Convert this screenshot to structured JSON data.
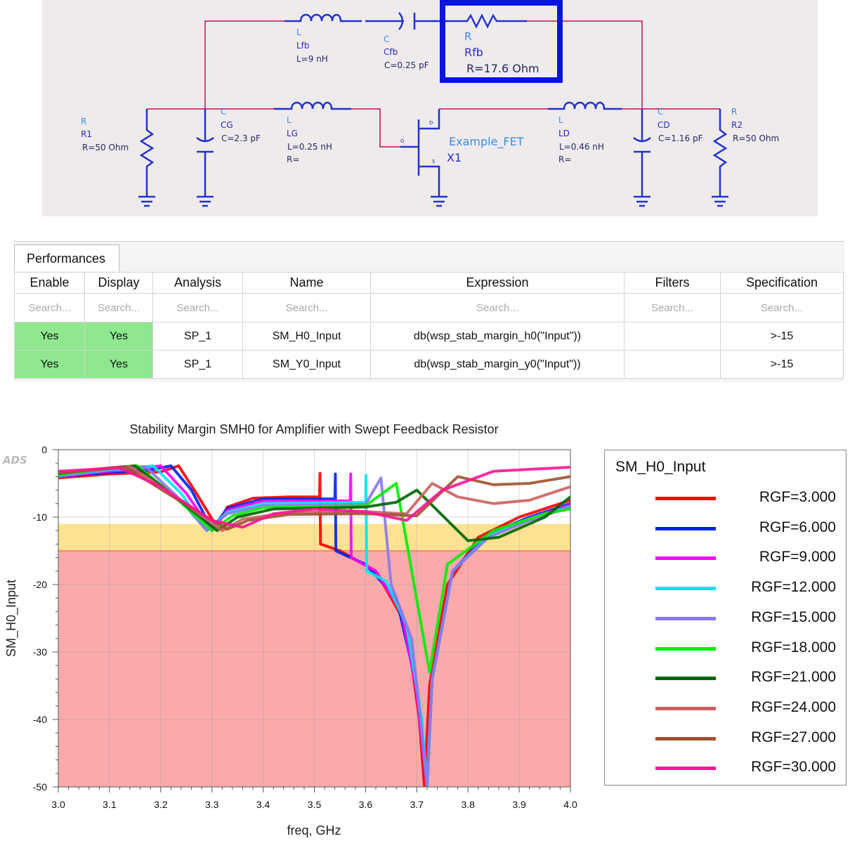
{
  "schematic": {
    "components": {
      "R1": {
        "type": "R",
        "name": "R1",
        "value": "R=50 Ohm"
      },
      "CG": {
        "type": "C",
        "name": "CG",
        "value": "C=2.3 pF"
      },
      "Lfb": {
        "type": "L",
        "name": "Lfb",
        "value": "L=9 nH"
      },
      "Cfb": {
        "type": "C",
        "name": "Cfb",
        "value": "C=0.25 pF"
      },
      "Rfb": {
        "type": "R",
        "name": "Rfb",
        "value": "R=17.6 Ohm"
      },
      "LG": {
        "type": "L",
        "name": "LG",
        "value": "L=0.25 nH",
        "extra": "R="
      },
      "X1": {
        "type": "Example_FET",
        "name": "X1",
        "pins": [
          "G",
          "D",
          "S"
        ]
      },
      "LD": {
        "type": "L",
        "name": "LD",
        "value": "L=0.46 nH",
        "extra": "R="
      },
      "CD": {
        "type": "C",
        "name": "CD",
        "value": "C=1.16 pF"
      },
      "R2": {
        "type": "R",
        "name": "R2",
        "value": "R=50 Ohm"
      }
    },
    "colors": {
      "wire": "#d6417f",
      "component": "#2233cc",
      "highlight": "#0a14e0",
      "background": "#efebec"
    }
  },
  "performances": {
    "tab": "Performances",
    "columns": [
      "Enable",
      "Display",
      "Analysis",
      "Name",
      "Expression",
      "Filters",
      "Specification"
    ],
    "search_placeholder": "Search...",
    "rows": [
      {
        "enable": "Yes",
        "display": "Yes",
        "analysis": "SP_1",
        "name": "SM_H0_Input",
        "expression": "db(wsp_stab_margin_h0(\"Input\"))",
        "filters": "",
        "spec": ">-15"
      },
      {
        "enable": "Yes",
        "display": "Yes",
        "analysis": "SP_1",
        "name": "SM_Y0_Input",
        "expression": "db(wsp_stab_margin_y0(\"Input\"))",
        "filters": "",
        "spec": ">-15"
      }
    ]
  },
  "chart_data": {
    "type": "line",
    "title": "Stability Margin SMH0 for Amplifier with Swept Feedback Resistor",
    "xlabel": "freq, GHz",
    "ylabel": "SM_H0_Input",
    "logo": "ADS",
    "xlim": [
      3.0,
      4.0
    ],
    "ylim": [
      -50,
      0
    ],
    "xticks": [
      "3.0",
      "3.1",
      "3.2",
      "3.3",
      "3.4",
      "3.5",
      "3.6",
      "3.7",
      "3.8",
      "3.9",
      "4.0"
    ],
    "yticks": [
      "0",
      "-10",
      "-20",
      "-30",
      "-40",
      "-50"
    ],
    "grid": true,
    "bands": [
      {
        "from": -15,
        "to": -11,
        "color": "#fde293"
      },
      {
        "from": -50,
        "to": -15,
        "color": "#fbaaab"
      }
    ],
    "spec_line": {
      "value": -15,
      "color": "#f07a5a"
    },
    "legend": {
      "title": "SM_H0_Input",
      "placement": "right"
    },
    "series": [
      {
        "name": "RGF=3.000",
        "color": "#ff0000",
        "points": [
          [
            3.0,
            -4.2
          ],
          [
            3.1,
            -3.6
          ],
          [
            3.2,
            -3.3
          ],
          [
            3.235,
            -2.4
          ],
          [
            3.27,
            -6.5
          ],
          [
            3.31,
            -11.5
          ],
          [
            3.33,
            -8.5
          ],
          [
            3.38,
            -7.2
          ],
          [
            3.45,
            -7
          ],
          [
            3.51,
            -7
          ],
          [
            3.511,
            -3.5
          ],
          [
            3.512,
            -14
          ],
          [
            3.55,
            -15
          ],
          [
            3.62,
            -18
          ],
          [
            3.68,
            -26
          ],
          [
            3.705,
            -40
          ],
          [
            3.715,
            -50
          ],
          [
            3.725,
            -35
          ],
          [
            3.76,
            -20
          ],
          [
            3.82,
            -13
          ],
          [
            3.9,
            -10
          ],
          [
            4.0,
            -7.5
          ]
        ]
      },
      {
        "name": "RGF=6.000",
        "color": "#0022ee",
        "points": [
          [
            3.0,
            -4
          ],
          [
            3.1,
            -3.4
          ],
          [
            3.18,
            -3
          ],
          [
            3.22,
            -2.4
          ],
          [
            3.26,
            -6
          ],
          [
            3.3,
            -11.8
          ],
          [
            3.33,
            -8.7
          ],
          [
            3.4,
            -7.3
          ],
          [
            3.54,
            -7.3
          ],
          [
            3.541,
            -3.6
          ],
          [
            3.542,
            -15
          ],
          [
            3.6,
            -17
          ],
          [
            3.66,
            -22
          ],
          [
            3.7,
            -35
          ],
          [
            3.72,
            -50
          ],
          [
            3.73,
            -34
          ],
          [
            3.77,
            -18
          ],
          [
            3.84,
            -12.5
          ],
          [
            3.92,
            -10
          ],
          [
            4.0,
            -8
          ]
        ]
      },
      {
        "name": "RGF=9.000",
        "color": "#ff00ff",
        "points": [
          [
            3.0,
            -4
          ],
          [
            3.1,
            -3.2
          ],
          [
            3.16,
            -2.8
          ],
          [
            3.2,
            -2.4
          ],
          [
            3.25,
            -6.5
          ],
          [
            3.3,
            -12
          ],
          [
            3.33,
            -9
          ],
          [
            3.4,
            -7.6
          ],
          [
            3.57,
            -7.6
          ],
          [
            3.571,
            -3.6
          ],
          [
            3.572,
            -16
          ],
          [
            3.62,
            -18
          ],
          [
            3.67,
            -24
          ],
          [
            3.7,
            -36
          ],
          [
            3.72,
            -50
          ],
          [
            3.73,
            -34
          ],
          [
            3.77,
            -18
          ],
          [
            3.84,
            -12.7
          ],
          [
            3.92,
            -10.2
          ],
          [
            4.0,
            -8.2
          ]
        ]
      },
      {
        "name": "RGF=12.000",
        "color": "#00e5ee",
        "points": [
          [
            3.0,
            -3.9
          ],
          [
            3.1,
            -3.0
          ],
          [
            3.15,
            -2.7
          ],
          [
            3.185,
            -2.4
          ],
          [
            3.24,
            -6.5
          ],
          [
            3.29,
            -12
          ],
          [
            3.33,
            -9.3
          ],
          [
            3.4,
            -8
          ],
          [
            3.6,
            -7.8
          ],
          [
            3.601,
            -3.8
          ],
          [
            3.602,
            -18
          ],
          [
            3.64,
            -19.5
          ],
          [
            3.68,
            -26
          ],
          [
            3.71,
            -40
          ],
          [
            3.72,
            -50
          ],
          [
            3.73,
            -34
          ],
          [
            3.77,
            -18
          ],
          [
            3.84,
            -12.8
          ],
          [
            3.92,
            -10.3
          ],
          [
            4.0,
            -8.4
          ]
        ]
      },
      {
        "name": "RGF=15.000",
        "color": "#8877ee",
        "points": [
          [
            3.0,
            -3.8
          ],
          [
            3.1,
            -2.9
          ],
          [
            3.17,
            -2.5
          ],
          [
            3.23,
            -6.8
          ],
          [
            3.29,
            -12
          ],
          [
            3.33,
            -9.5
          ],
          [
            3.4,
            -8.3
          ],
          [
            3.6,
            -8.1
          ],
          [
            3.63,
            -4.2
          ],
          [
            3.65,
            -20
          ],
          [
            3.69,
            -28
          ],
          [
            3.71,
            -42
          ],
          [
            3.72,
            -50
          ],
          [
            3.73,
            -34
          ],
          [
            3.77,
            -18
          ],
          [
            3.84,
            -13
          ],
          [
            3.92,
            -10.5
          ],
          [
            4.0,
            -8.5
          ]
        ]
      },
      {
        "name": "RGF=18.000",
        "color": "#00ee00",
        "points": [
          [
            3.0,
            -3.6
          ],
          [
            3.1,
            -2.8
          ],
          [
            3.155,
            -2.4
          ],
          [
            3.22,
            -6.5
          ],
          [
            3.3,
            -12
          ],
          [
            3.34,
            -9.8
          ],
          [
            3.4,
            -8.6
          ],
          [
            3.6,
            -8.3
          ],
          [
            3.66,
            -5
          ],
          [
            3.725,
            -33
          ],
          [
            3.76,
            -17
          ],
          [
            3.85,
            -12
          ],
          [
            3.95,
            -9.5
          ],
          [
            4.0,
            -8.8
          ]
        ]
      },
      {
        "name": "RGF=21.000",
        "color": "#006400",
        "points": [
          [
            3.0,
            -3.5
          ],
          [
            3.1,
            -2.7
          ],
          [
            3.15,
            -2.4
          ],
          [
            3.22,
            -6.5
          ],
          [
            3.31,
            -12
          ],
          [
            3.35,
            -10
          ],
          [
            3.42,
            -8.8
          ],
          [
            3.6,
            -8.5
          ],
          [
            3.66,
            -7.8
          ],
          [
            3.7,
            -6
          ],
          [
            3.74,
            -9
          ],
          [
            3.8,
            -13.5
          ],
          [
            3.86,
            -13
          ],
          [
            3.95,
            -10
          ],
          [
            4.0,
            -7
          ]
        ]
      },
      {
        "name": "RGF=24.000",
        "color": "#cd6060",
        "points": [
          [
            3.0,
            -3.4
          ],
          [
            3.1,
            -2.7
          ],
          [
            3.14,
            -2.5
          ],
          [
            3.22,
            -6.5
          ],
          [
            3.32,
            -12
          ],
          [
            3.36,
            -10.3
          ],
          [
            3.45,
            -9.3
          ],
          [
            3.6,
            -9.2
          ],
          [
            3.68,
            -9.5
          ],
          [
            3.73,
            -5
          ],
          [
            3.78,
            -7
          ],
          [
            3.85,
            -8
          ],
          [
            3.92,
            -7.5
          ],
          [
            4.0,
            -5.5
          ]
        ]
      },
      {
        "name": "RGF=27.000",
        "color": "#a0522d",
        "points": [
          [
            3.0,
            -3.4
          ],
          [
            3.1,
            -2.8
          ],
          [
            3.13,
            -2.5
          ],
          [
            3.22,
            -6.8
          ],
          [
            3.33,
            -11.8
          ],
          [
            3.37,
            -10.5
          ],
          [
            3.45,
            -9.6
          ],
          [
            3.6,
            -9.5
          ],
          [
            3.7,
            -9.8
          ],
          [
            3.78,
            -4
          ],
          [
            3.85,
            -5.2
          ],
          [
            3.92,
            -5
          ],
          [
            4.0,
            -4
          ]
        ]
      },
      {
        "name": "RGF=30.000",
        "color": "#ff1493",
        "points": [
          [
            3.0,
            -3.2
          ],
          [
            3.05,
            -3.0
          ],
          [
            3.12,
            -2.7
          ],
          [
            3.2,
            -5.5
          ],
          [
            3.3,
            -10.5
          ],
          [
            3.36,
            -11.5
          ],
          [
            3.42,
            -9.5
          ],
          [
            3.5,
            -8.8
          ],
          [
            3.6,
            -9.2
          ],
          [
            3.68,
            -10.5
          ],
          [
            3.75,
            -6
          ],
          [
            3.85,
            -3.2
          ],
          [
            4.0,
            -2.6
          ]
        ]
      }
    ]
  }
}
